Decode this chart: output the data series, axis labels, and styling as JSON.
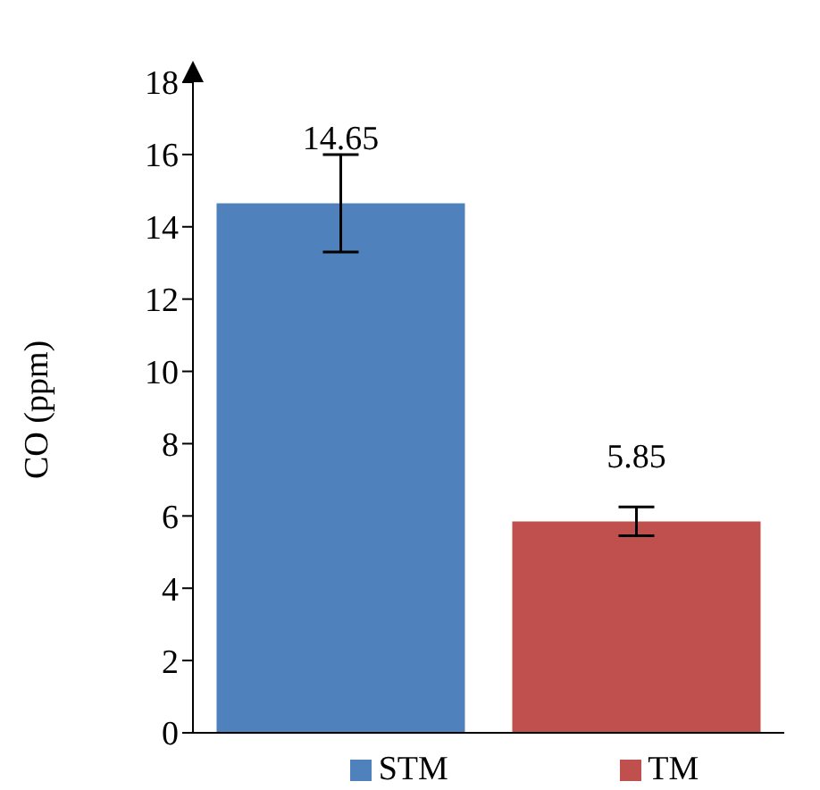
{
  "chart_data": {
    "type": "bar",
    "ylabel": "CO (ppm)",
    "categories": [
      null,
      null
    ],
    "series": [
      {
        "name": "STM",
        "color": "#4f81bd",
        "values": [
          14.65,
          null
        ],
        "errors": [
          1.35,
          null
        ]
      },
      {
        "name": "TM",
        "color": "#c0504d",
        "values": [
          null,
          5.85
        ],
        "errors": [
          null,
          0.4
        ]
      }
    ],
    "ylim": [
      0,
      18
    ],
    "yticks": [
      0,
      2,
      4,
      6,
      8,
      10,
      12,
      14,
      16,
      18
    ],
    "grid": false,
    "legend": "bottom",
    "data_labels": true
  }
}
